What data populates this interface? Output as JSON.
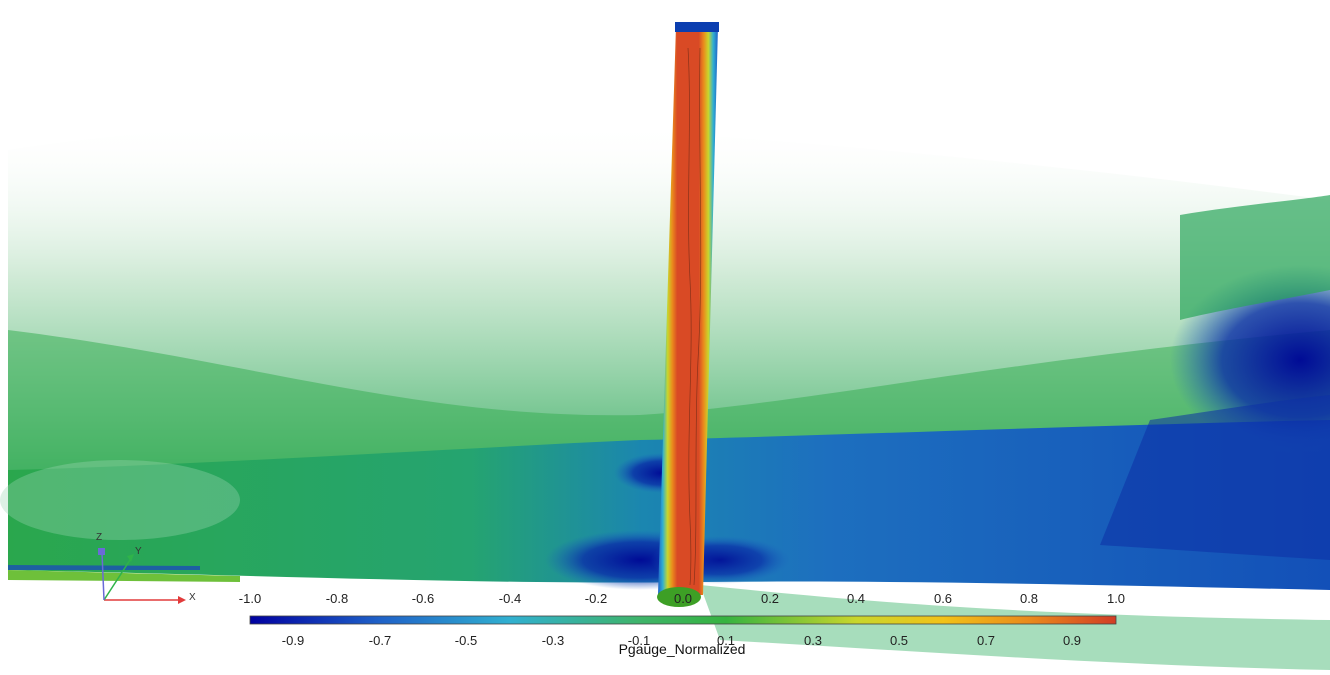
{
  "colorbar": {
    "title": "Pgauge_Normalized",
    "major_ticks": [
      "-1.0",
      "-0.8",
      "-0.6",
      "-0.4",
      "-0.2",
      "0.0",
      "0.2",
      "0.4",
      "0.6",
      "0.8",
      "1.0"
    ],
    "minor_ticks": [
      "-0.9",
      "-0.7",
      "-0.5",
      "-0.3",
      "-0.1",
      "0.1",
      "0.3",
      "0.5",
      "0.7",
      "0.9"
    ],
    "range": [
      -1.0,
      1.0
    ],
    "colors": [
      "#0000a0",
      "#1f62c8",
      "#31b0d0",
      "#3fb46a",
      "#36b340",
      "#c9d62c",
      "#f2c218",
      "#ea8a1c",
      "#d23d25"
    ]
  },
  "axes_triad": {
    "x": "X",
    "y": "Y",
    "z": "Z"
  },
  "colors": {
    "high": "#d94a25",
    "low": "#000d9a",
    "mid": "#3ab24e",
    "background": "#ffffff"
  }
}
